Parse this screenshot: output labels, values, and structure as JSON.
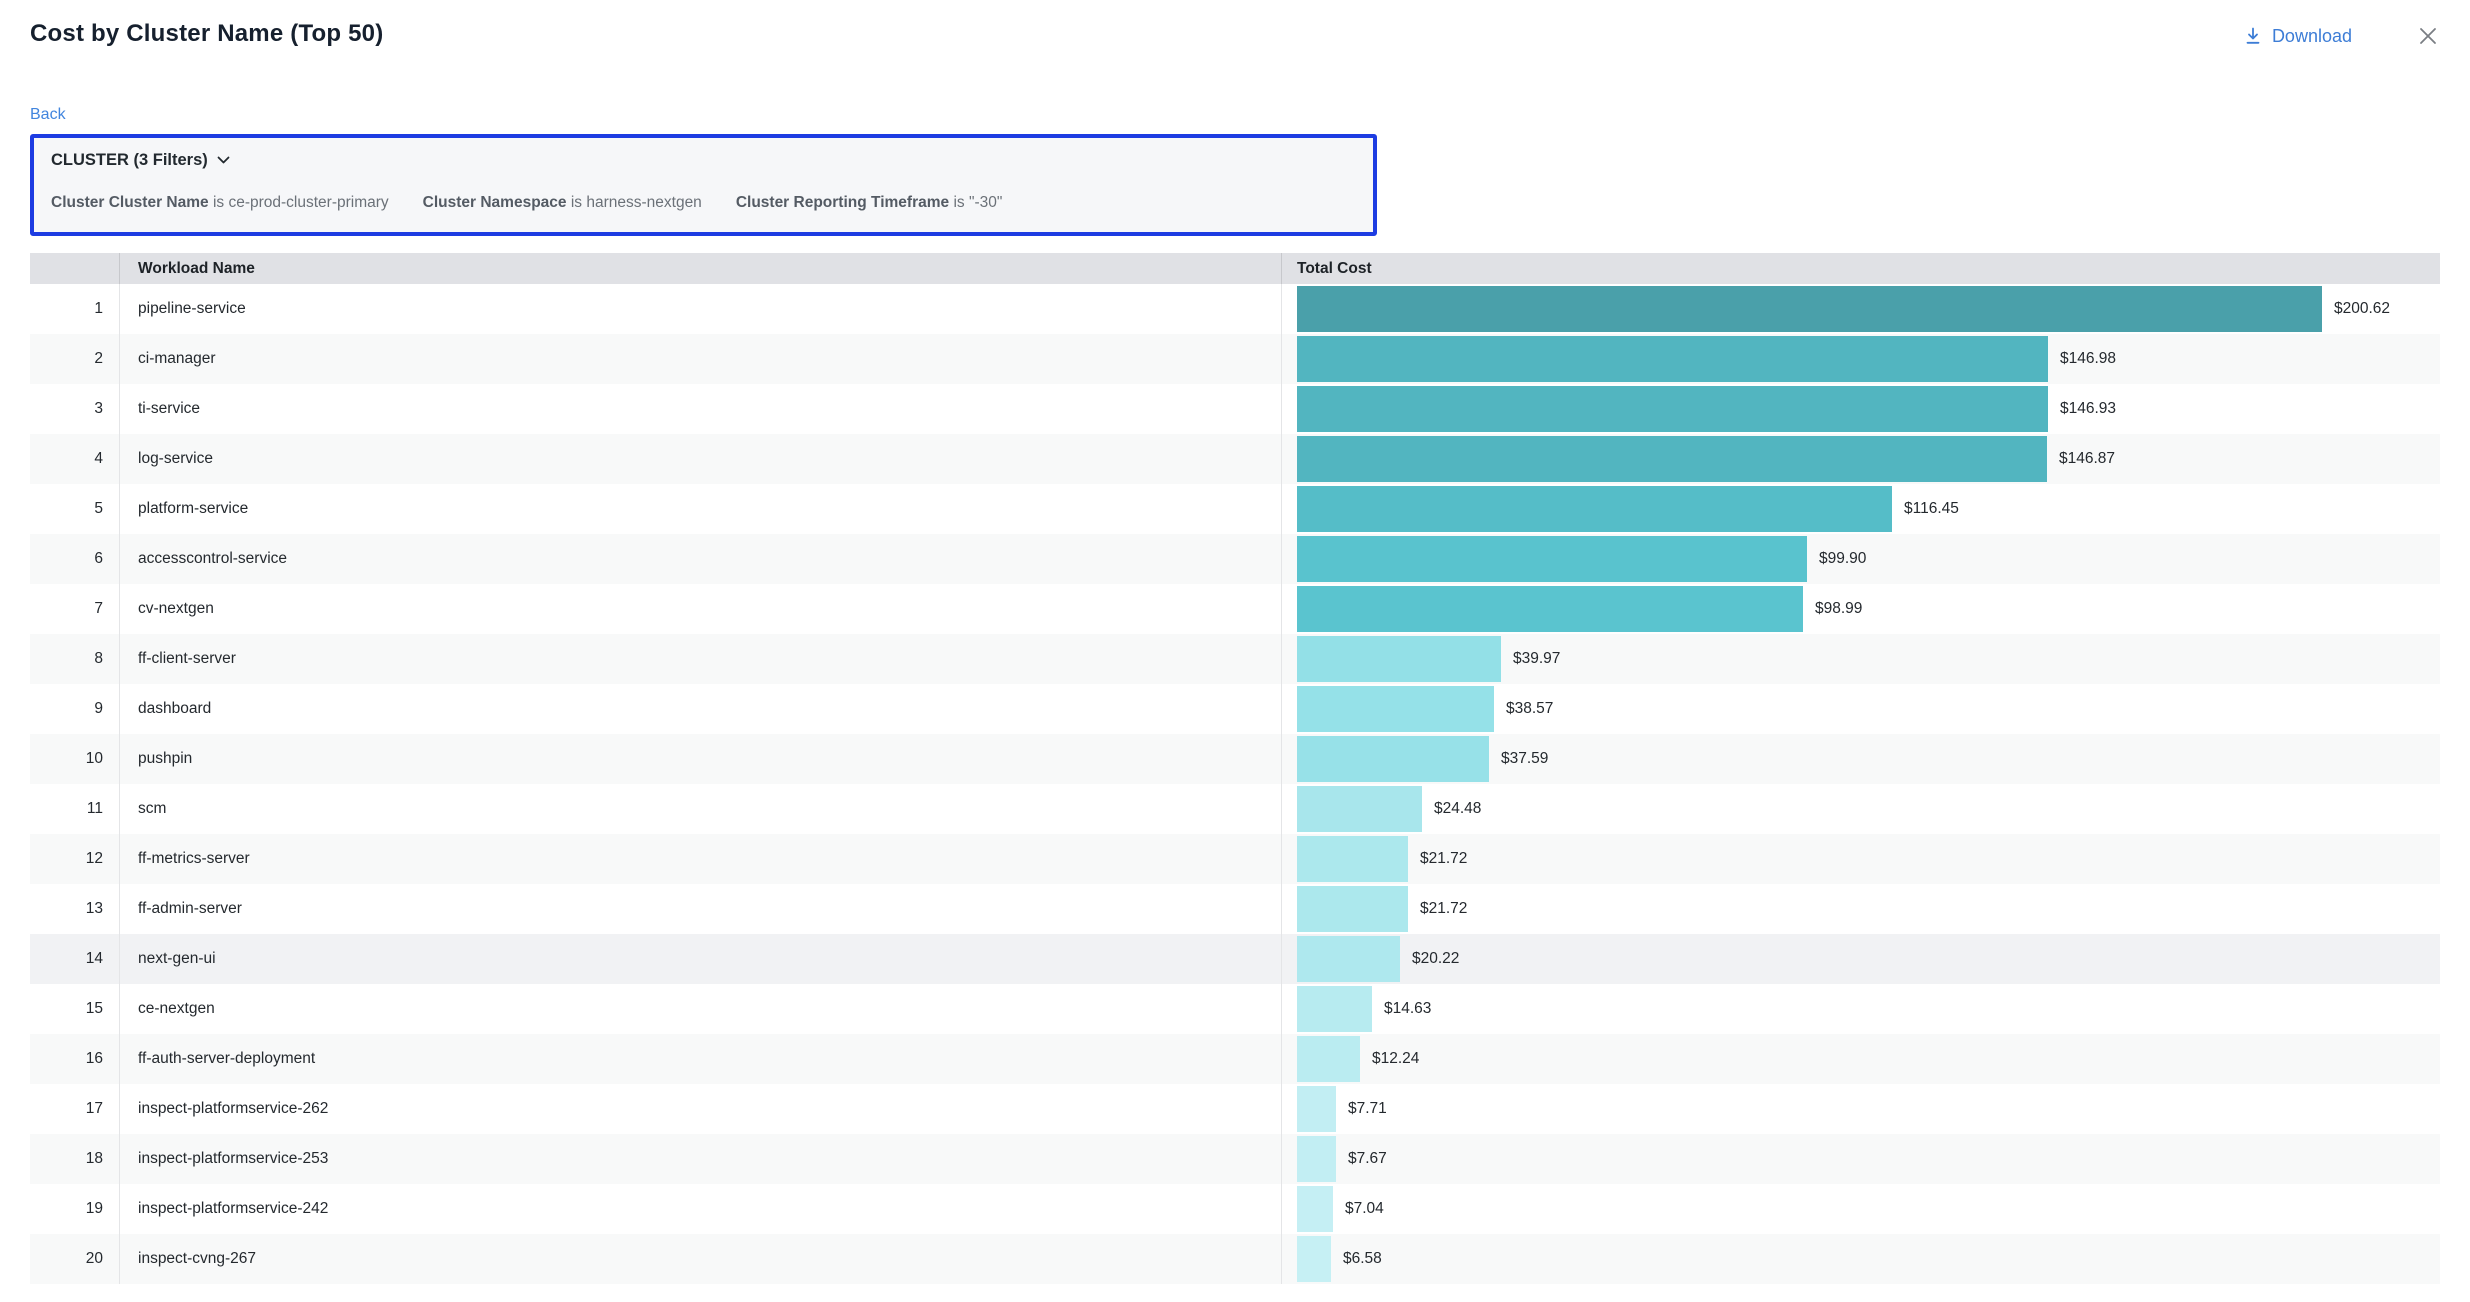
{
  "header": {
    "title": "Cost by Cluster Name (Top 50)",
    "download_label": "Download",
    "download_icon": "download-arrow",
    "close_icon": "x-cross"
  },
  "back_label": "Back",
  "filters": {
    "summary": "CLUSTER (3 Filters)",
    "chevron_icon": "chevron-down",
    "border_color": "#1d3ce2",
    "items": [
      {
        "field": "Cluster Cluster Name",
        "condition": "is ce-prod-cluster-primary"
      },
      {
        "field": "Cluster Namespace",
        "condition": "is harness-nextgen"
      },
      {
        "field": "Cluster Reporting Timeframe",
        "condition": "is \"-30\""
      }
    ]
  },
  "table": {
    "columns": {
      "workload": "Workload Name",
      "cost": "Total Cost"
    },
    "rows": [
      {
        "rank": 1,
        "name": "pipeline-service",
        "cost": "$200.62",
        "value": 200.62,
        "bar_color": "#4aa0aa"
      },
      {
        "rank": 2,
        "name": "ci-manager",
        "cost": "$146.98",
        "value": 146.98,
        "bar_color": "#52b5c0"
      },
      {
        "rank": 3,
        "name": "ti-service",
        "cost": "$146.93",
        "value": 146.93,
        "bar_color": "#52b5c0"
      },
      {
        "rank": 4,
        "name": "log-service",
        "cost": "$146.87",
        "value": 146.87,
        "bar_color": "#52b5c0"
      },
      {
        "rank": 5,
        "name": "platform-service",
        "cost": "$116.45",
        "value": 116.45,
        "bar_color": "#55bdc8"
      },
      {
        "rank": 6,
        "name": "accesscontrol-service",
        "cost": "$99.90",
        "value": 99.9,
        "bar_color": "#59c3ce"
      },
      {
        "rank": 7,
        "name": "cv-nextgen",
        "cost": "$98.99",
        "value": 98.99,
        "bar_color": "#5ac4cf"
      },
      {
        "rank": 8,
        "name": "ff-client-server",
        "cost": "$39.97",
        "value": 39.97,
        "bar_color": "#93e0e7"
      },
      {
        "rank": 9,
        "name": "dashboard",
        "cost": "$38.57",
        "value": 38.57,
        "bar_color": "#95e1e8"
      },
      {
        "rank": 10,
        "name": "pushpin",
        "cost": "$37.59",
        "value": 37.59,
        "bar_color": "#97e1e8"
      },
      {
        "rank": 11,
        "name": "scm",
        "cost": "$24.48",
        "value": 24.48,
        "bar_color": "#a8e6ec"
      },
      {
        "rank": 12,
        "name": "ff-metrics-server",
        "cost": "$21.72",
        "value": 21.72,
        "bar_color": "#ace8ed"
      },
      {
        "rank": 13,
        "name": "ff-admin-server",
        "cost": "$21.72",
        "value": 21.72,
        "bar_color": "#ace8ed"
      },
      {
        "rank": 14,
        "name": "next-gen-ui",
        "cost": "$20.22",
        "value": 20.22,
        "bar_color": "#aee8ee",
        "highlighted": true
      },
      {
        "rank": 15,
        "name": "ce-nextgen",
        "cost": "$14.63",
        "value": 14.63,
        "bar_color": "#b7ebf0"
      },
      {
        "rank": 16,
        "name": "ff-auth-server-deployment",
        "cost": "$12.24",
        "value": 12.24,
        "bar_color": "#baecf1"
      },
      {
        "rank": 17,
        "name": "inspect-platformservice-262",
        "cost": "$7.71",
        "value": 7.71,
        "bar_color": "#c2eef3"
      },
      {
        "rank": 18,
        "name": "inspect-platformservice-253",
        "cost": "$7.67",
        "value": 7.67,
        "bar_color": "#c2eef3"
      },
      {
        "rank": 19,
        "name": "inspect-platformservice-242",
        "cost": "$7.04",
        "value": 7.04,
        "bar_color": "#c5eff4"
      },
      {
        "rank": 20,
        "name": "inspect-cvng-267",
        "cost": "$6.58",
        "value": 6.58,
        "bar_color": "#c6f0f4"
      }
    ]
  },
  "chart_data": {
    "type": "bar",
    "orientation": "horizontal",
    "title": "Cost by Cluster Name (Top 50)",
    "xlabel": "Total Cost",
    "ylabel": "Workload Name",
    "categories": [
      "pipeline-service",
      "ci-manager",
      "ti-service",
      "log-service",
      "platform-service",
      "accesscontrol-service",
      "cv-nextgen",
      "ff-client-server",
      "dashboard",
      "pushpin",
      "scm",
      "ff-metrics-server",
      "ff-admin-server",
      "next-gen-ui",
      "ce-nextgen",
      "ff-auth-server-deployment",
      "inspect-platformservice-262",
      "inspect-platformservice-253",
      "inspect-platformservice-242",
      "inspect-cvng-267"
    ],
    "values": [
      200.62,
      146.98,
      146.93,
      146.87,
      116.45,
      99.9,
      98.99,
      39.97,
      38.57,
      37.59,
      24.48,
      21.72,
      21.72,
      20.22,
      14.63,
      12.24,
      7.71,
      7.67,
      7.04,
      6.58
    ],
    "data_labels": [
      "$200.62",
      "$146.98",
      "$146.93",
      "$146.87",
      "$116.45",
      "$99.90",
      "$98.99",
      "$39.97",
      "$38.57",
      "$37.59",
      "$24.48",
      "$21.72",
      "$21.72",
      "$20.22",
      "$14.63",
      "$12.24",
      "$7.71",
      "$7.67",
      "$7.04",
      "$6.58"
    ],
    "xlim": [
      0,
      200.62
    ],
    "grid": false,
    "legend": false,
    "color_scale": [
      "#4aa0aa",
      "#c6f0f4"
    ]
  }
}
